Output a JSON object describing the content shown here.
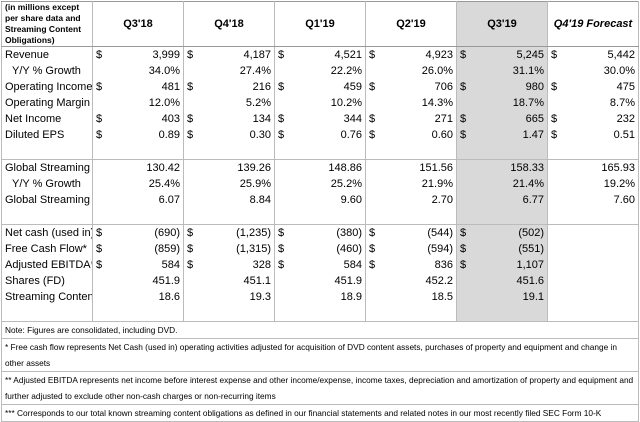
{
  "table": {
    "header": [
      "(in millions except per share data and Streaming Content Obligations)",
      "Q3'18",
      "Q4'18",
      "Q1'19",
      "Q2'19",
      "Q3'19",
      "Q4'19 Forecast"
    ],
    "sections": [
      [
        {
          "label": "Revenue",
          "cells": [
            [
              "$",
              "3,999"
            ],
            [
              "$",
              "4,187"
            ],
            [
              "$",
              "4,521"
            ],
            [
              "$",
              "4,923"
            ],
            [
              "$",
              "5,245"
            ],
            [
              "$",
              "5,442"
            ]
          ]
        },
        {
          "label": "Y/Y % Growth",
          "indent": true,
          "cells": [
            [
              "34.0%"
            ],
            [
              "27.4%"
            ],
            [
              "22.2%"
            ],
            [
              "26.0%"
            ],
            [
              "31.1%"
            ],
            [
              "30.0%"
            ]
          ]
        },
        {
          "label": "Operating Income",
          "cells": [
            [
              "$",
              "481"
            ],
            [
              "$",
              "216"
            ],
            [
              "$",
              "459"
            ],
            [
              "$",
              "706"
            ],
            [
              "$",
              "980"
            ],
            [
              "$",
              "475"
            ]
          ]
        },
        {
          "label": "Operating Margin",
          "cells": [
            [
              "12.0%"
            ],
            [
              "5.2%"
            ],
            [
              "10.2%"
            ],
            [
              "14.3%"
            ],
            [
              "18.7%"
            ],
            [
              "8.7%"
            ]
          ]
        },
        {
          "label": "Net Income",
          "cells": [
            [
              "$",
              "403"
            ],
            [
              "$",
              "134"
            ],
            [
              "$",
              "344"
            ],
            [
              "$",
              "271"
            ],
            [
              "$",
              "665"
            ],
            [
              "$",
              "232"
            ]
          ]
        },
        {
          "label": "Diluted EPS",
          "cells": [
            [
              "$",
              "0.89"
            ],
            [
              "$",
              "0.30"
            ],
            [
              "$",
              "0.76"
            ],
            [
              "$",
              "0.60"
            ],
            [
              "$",
              "1.47"
            ],
            [
              "$",
              "0.51"
            ]
          ]
        }
      ],
      [
        {
          "label": "Global Streaming Paid Memberships",
          "cells": [
            [
              "130.42"
            ],
            [
              "139.26"
            ],
            [
              "148.86"
            ],
            [
              "151.56"
            ],
            [
              "158.33"
            ],
            [
              "165.93"
            ]
          ]
        },
        {
          "label": "Y/Y % Growth",
          "indent": true,
          "cells": [
            [
              "25.4%"
            ],
            [
              "25.9%"
            ],
            [
              "25.2%"
            ],
            [
              "21.9%"
            ],
            [
              "21.4%"
            ],
            [
              "19.2%"
            ]
          ]
        },
        {
          "label": "Global Streaming Paid Net Additions",
          "cells": [
            [
              "6.07"
            ],
            [
              "8.84"
            ],
            [
              "9.60"
            ],
            [
              "2.70"
            ],
            [
              "6.77"
            ],
            [
              "7.60"
            ]
          ]
        }
      ],
      [
        {
          "label": "Net cash (used in) operating activities",
          "cells": [
            [
              "$",
              "(690)"
            ],
            [
              "$",
              "(1,235)"
            ],
            [
              "$",
              "(380)"
            ],
            [
              "$",
              "(544)"
            ],
            [
              "$",
              "(502)"
            ],
            []
          ]
        },
        {
          "label": "Free Cash Flow*",
          "cells": [
            [
              "$",
              "(859)"
            ],
            [
              "$",
              "(1,315)"
            ],
            [
              "$",
              "(460)"
            ],
            [
              "$",
              "(594)"
            ],
            [
              "$",
              "(551)"
            ],
            []
          ]
        },
        {
          "label": "Adjusted EBITDA**",
          "cells": [
            [
              "$",
              "584"
            ],
            [
              "$",
              "328"
            ],
            [
              "$",
              "584"
            ],
            [
              "$",
              "836"
            ],
            [
              "$",
              "1,107"
            ],
            []
          ]
        },
        {
          "label": "Shares (FD)",
          "cells": [
            [
              "451.9"
            ],
            [
              "451.1"
            ],
            [
              "451.9"
            ],
            [
              "452.2"
            ],
            [
              "451.6"
            ],
            []
          ]
        },
        {
          "label": "Streaming Content Obligations*** ($B)",
          "cells": [
            [
              "18.6"
            ],
            [
              "19.3"
            ],
            [
              "18.9"
            ],
            [
              "18.5"
            ],
            [
              "19.1"
            ],
            []
          ]
        }
      ]
    ],
    "notes": [
      "Note: Figures are consolidated, including DVD.",
      "* Free cash flow represents Net Cash (used in) operating activities adjusted for acquisition of DVD content assets, purchases of property and equipment and change in other assets",
      "** Adjusted EBITDA represents net income before interest expense and other income/expense, income taxes, depreciation and amortization of property and equipment and further adjusted to exclude other non-cash charges or non-recurring items",
      "*** Corresponds to our total known streaming content obligations as defined in our financial statements and related notes in our most recently filed SEC Form 10-K"
    ]
  }
}
